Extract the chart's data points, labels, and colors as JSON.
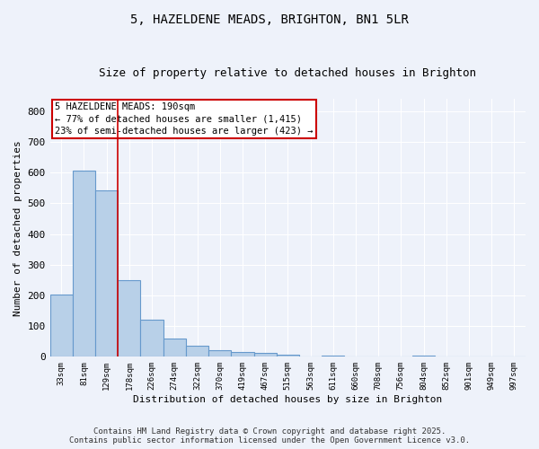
{
  "title": "5, HAZELDENE MEADS, BRIGHTON, BN1 5LR",
  "subtitle": "Size of property relative to detached houses in Brighton",
  "xlabel": "Distribution of detached houses by size in Brighton",
  "ylabel": "Number of detached properties",
  "footer_line1": "Contains HM Land Registry data © Crown copyright and database right 2025.",
  "footer_line2": "Contains public sector information licensed under the Open Government Licence v3.0.",
  "categories": [
    "33sqm",
    "81sqm",
    "129sqm",
    "178sqm",
    "226sqm",
    "274sqm",
    "322sqm",
    "370sqm",
    "419sqm",
    "467sqm",
    "515sqm",
    "563sqm",
    "611sqm",
    "660sqm",
    "708sqm",
    "756sqm",
    "804sqm",
    "852sqm",
    "901sqm",
    "949sqm",
    "997sqm"
  ],
  "values": [
    203,
    606,
    543,
    250,
    120,
    60,
    37,
    20,
    17,
    13,
    6,
    0,
    4,
    0,
    0,
    0,
    5,
    0,
    0,
    0,
    0
  ],
  "bar_color": "#b8d0e8",
  "bar_edge_color": "#6699cc",
  "bar_edge_width": 0.8,
  "ylim": [
    0,
    840
  ],
  "yticks": [
    0,
    100,
    200,
    300,
    400,
    500,
    600,
    700,
    800
  ],
  "annotation_box_text_line1": "5 HAZELDENE MEADS: 190sqm",
  "annotation_box_text_line2": "← 77% of detached houses are smaller (1,415)",
  "annotation_box_text_line3": "23% of semi-detached houses are larger (423) →",
  "red_line_x": 2.5,
  "background_color": "#eef2fa",
  "grid_color": "#ffffff",
  "box_color_face": "#ffffff",
  "box_color_edge": "#cc0000",
  "title_fontsize": 10,
  "subtitle_fontsize": 9,
  "annotation_fontsize": 7.5,
  "footer_fontsize": 6.5,
  "ylabel_fontsize": 8,
  "xlabel_fontsize": 8
}
